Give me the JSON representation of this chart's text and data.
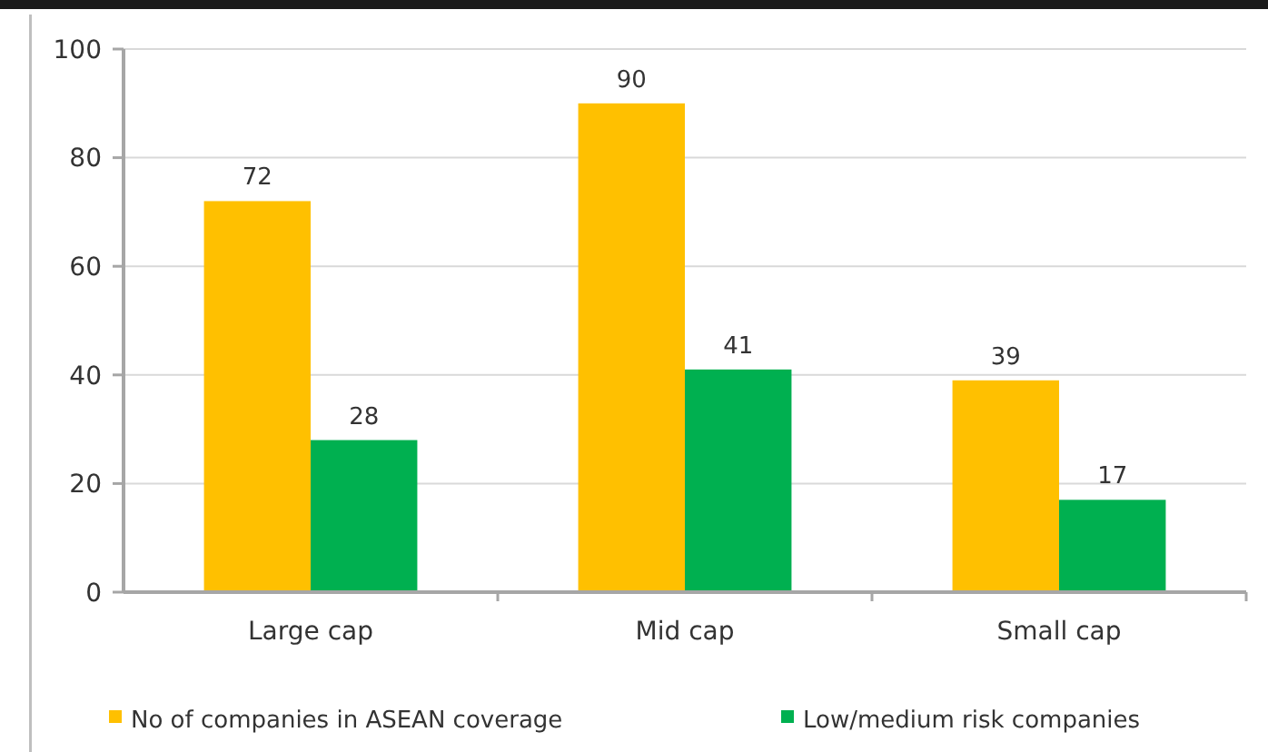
{
  "chart_data": {
    "type": "bar",
    "categories": [
      "Large cap",
      "Mid cap",
      "Small cap"
    ],
    "series": [
      {
        "name": "No of companies in ASEAN coverage",
        "color": "#ffc000",
        "values": [
          72,
          90,
          39
        ]
      },
      {
        "name": "Low/medium risk companies",
        "color": "#00b050",
        "values": [
          28,
          41,
          17
        ]
      }
    ],
    "ylim": [
      0,
      100
    ],
    "yticks": [
      0,
      20,
      40,
      60,
      80,
      100
    ],
    "grid": "y",
    "legend": "bottom",
    "data_labels": true
  }
}
